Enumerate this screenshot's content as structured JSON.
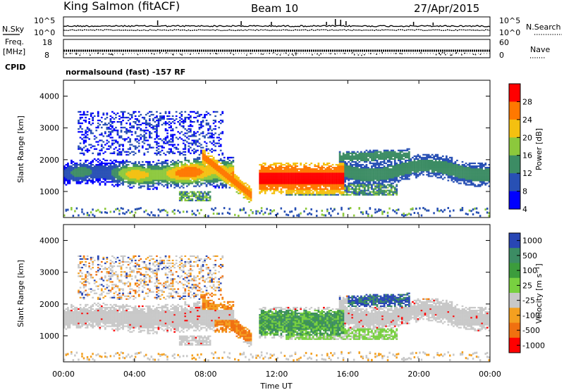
{
  "header": {
    "station": "King Salmon (fitACF)",
    "beam": "Beam 10",
    "date": "27/Apr/2015",
    "mode": "normalsound (fast) -157 RF"
  },
  "left_labels": {
    "nsky": "N.Sky",
    "freq_line1": "Freq.",
    "freq_line2": "[MHz]",
    "cpid": "CPID"
  },
  "right_labels": {
    "nsearch": "N.Search",
    "nave": "Nave"
  },
  "chart_data": [
    {
      "name": "noise",
      "type": "line",
      "left_ticks": [
        "10^5",
        "10^0"
      ],
      "right_ticks": [
        "10^5",
        "10^0"
      ],
      "dotted_legend": true
    },
    {
      "name": "frequency",
      "type": "scatter",
      "left_ticks": [
        "18",
        "8"
      ],
      "right_ticks": [
        "60",
        "0"
      ],
      "ylim_left": [
        8,
        18
      ],
      "ylim_right": [
        0,
        60
      ]
    },
    {
      "name": "power",
      "type": "heatmap",
      "ylabel": "Slant Range [km]",
      "yticks": [
        1000,
        2000,
        3000,
        4000
      ],
      "ylim": [
        180,
        4500
      ],
      "colorbar_label": "Power [dB]",
      "colorbar_ticks": [
        "28",
        "24",
        "20",
        "16",
        "12",
        "8",
        "4"
      ],
      "colorbar_colors": [
        "#ff0000",
        "#ff7800",
        "#f4c010",
        "#8cc83c",
        "#3c8c64",
        "#2850b4",
        "#0000ff"
      ]
    },
    {
      "name": "velocity",
      "type": "heatmap",
      "ylabel": "Slant Range [km]",
      "yticks": [
        1000,
        2000,
        3000,
        4000
      ],
      "ylim": [
        180,
        4500
      ],
      "colorbar_label": "Velocity [m s⁻¹]",
      "colorbar_ticks": [
        "1000",
        "500",
        "100",
        "25",
        "-25",
        "-100",
        "-500",
        "-1000"
      ],
      "colorbar_colors": [
        "#2846b4",
        "#3c8c64",
        "#3c9c3c",
        "#78d040",
        "#c8c8c8",
        "#f4a020",
        "#f07010",
        "#ff0000"
      ]
    }
  ],
  "time_axis": {
    "label": "Time UT",
    "ticks": [
      "00:00",
      "04:00",
      "08:00",
      "12:00",
      "16:00",
      "20:00",
      "00:00"
    ]
  }
}
